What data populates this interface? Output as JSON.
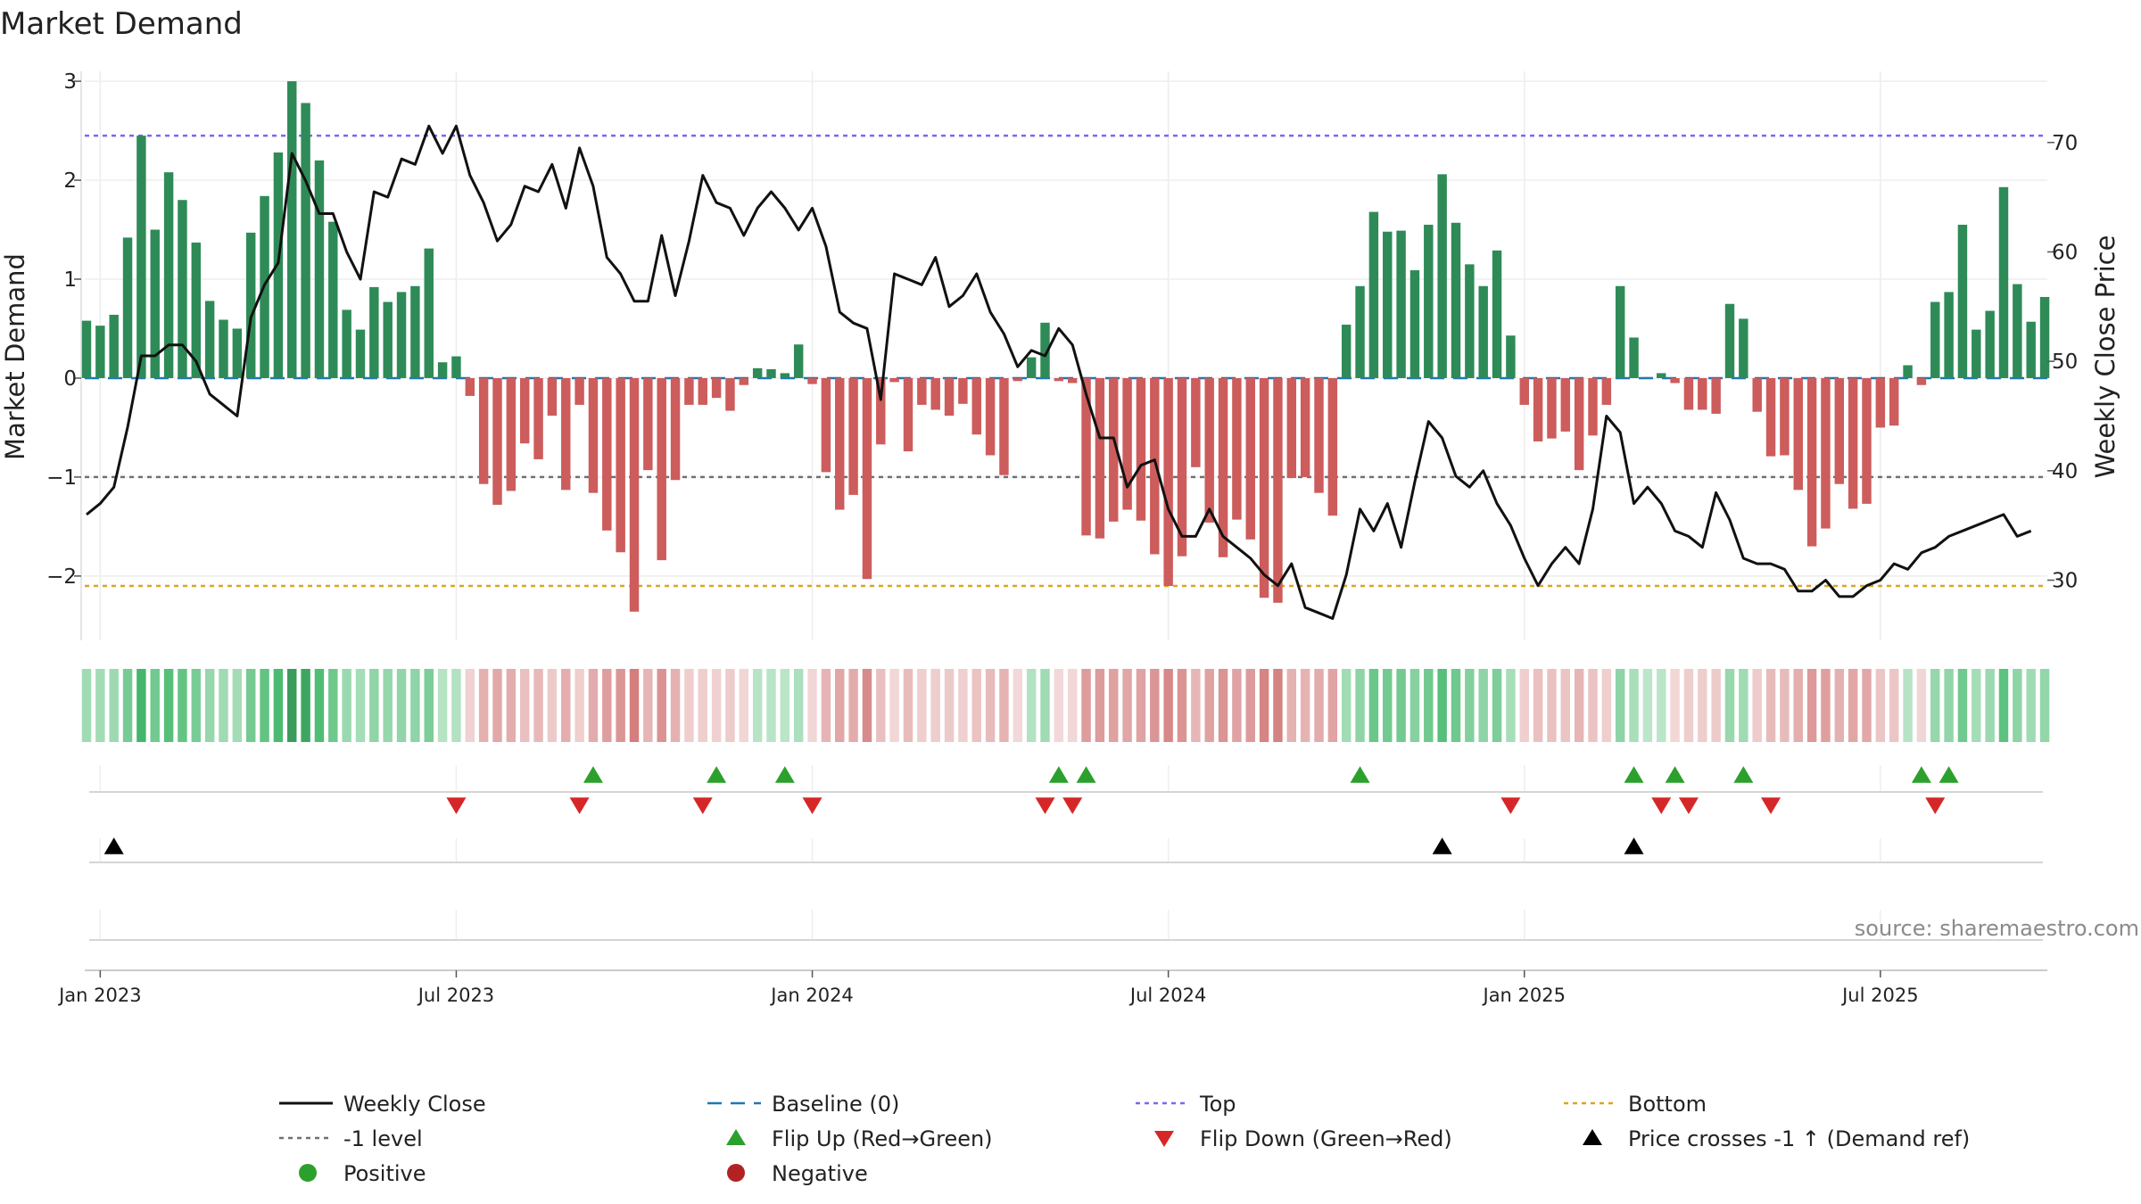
{
  "chart_data": {
    "type": "bar",
    "title": "Market Demand",
    "ylabel": "Market Demand",
    "y2label": "Weekly Close Price",
    "ylim": [
      -2.65,
      3.1
    ],
    "y_ticks": [
      3,
      2,
      1,
      0,
      -1,
      -2
    ],
    "y_tick_labels": [
      "3",
      "2",
      "1",
      "0",
      "−1",
      "−2"
    ],
    "y2lim": [
      24.5,
      76.5
    ],
    "y2_ticks": [
      70,
      60,
      50,
      40,
      30
    ],
    "y2_tick_labels": [
      "70",
      "60",
      "50",
      "40",
      "30"
    ],
    "x_tick_labels": [
      "Jan 2023",
      "Jul 2023",
      "Jan 2024",
      "Jul 2024",
      "Jan 2025",
      "Jul 2025"
    ],
    "x_tick_weeks": [
      1,
      27,
      53,
      79,
      105,
      131
    ],
    "reference_lines": {
      "top": 2.45,
      "bottom": -2.1,
      "minus_one": -1,
      "baseline": 0
    },
    "demand": [
      0.58,
      0.53,
      0.64,
      1.42,
      2.45,
      1.5,
      2.08,
      1.8,
      1.37,
      0.78,
      0.59,
      0.5,
      1.47,
      1.84,
      2.28,
      3.0,
      2.78,
      2.2,
      1.58,
      0.69,
      0.49,
      0.92,
      0.77,
      0.87,
      0.93,
      1.31,
      0.16,
      0.22,
      -0.18,
      -1.07,
      -1.28,
      -1.14,
      -0.66,
      -0.82,
      -0.38,
      -1.13,
      -0.27,
      -1.16,
      -1.54,
      -1.76,
      -2.36,
      -0.93,
      -1.84,
      -1.03,
      -0.27,
      -0.27,
      -0.2,
      -0.33,
      -0.07,
      0.1,
      0.09,
      0.05,
      0.34,
      -0.06,
      -0.95,
      -1.33,
      -1.18,
      -2.03,
      -0.67,
      -0.04,
      -0.74,
      -0.27,
      -0.32,
      -0.38,
      -0.26,
      -0.57,
      -0.78,
      -0.98,
      -0.03,
      0.21,
      0.56,
      -0.03,
      -0.05,
      -1.59,
      -1.62,
      -1.45,
      -1.33,
      -1.44,
      -1.78,
      -2.1,
      -1.8,
      -0.9,
      -1.46,
      -1.81,
      -1.43,
      -1.63,
      -2.22,
      -2.27,
      -1.01,
      -1.0,
      -1.16,
      -1.39,
      0.54,
      0.93,
      1.68,
      1.48,
      1.49,
      1.09,
      1.55,
      2.06,
      1.57,
      1.15,
      0.93,
      1.29,
      0.43,
      -0.27,
      -0.64,
      -0.61,
      -0.54,
      -0.93,
      -0.58,
      -0.27,
      0.93,
      0.41,
      0.01,
      0.05,
      -0.05,
      -0.32,
      -0.32,
      -0.36,
      0.75,
      0.6,
      -0.34,
      -0.79,
      -0.78,
      -1.13,
      -1.7,
      -1.52,
      -1.07,
      -1.32,
      -1.27,
      -0.5,
      -0.48,
      0.13,
      -0.07,
      0.77,
      0.87,
      1.55,
      0.49,
      0.68,
      1.93,
      0.95,
      0.57,
      0.82
    ],
    "weekly_close": [
      36.0,
      37.0,
      38.5,
      44.0,
      50.5,
      50.5,
      51.5,
      51.5,
      50.0,
      47.0,
      46.0,
      45.0,
      54.0,
      57.0,
      59.0,
      69.0,
      66.5,
      63.5,
      63.5,
      60.0,
      57.5,
      65.5,
      65.0,
      68.5,
      68.0,
      71.5,
      69.0,
      71.5,
      67.0,
      64.5,
      61.0,
      62.5,
      66.0,
      65.5,
      68.0,
      64.0,
      69.5,
      66.0,
      59.5,
      58.0,
      55.5,
      55.5,
      61.5,
      56.0,
      61.0,
      67.0,
      64.5,
      64.0,
      61.5,
      64.0,
      65.5,
      64.0,
      62.0,
      64.0,
      60.5,
      54.5,
      53.5,
      53.0,
      46.5,
      58.0,
      57.5,
      57.0,
      59.5,
      55.0,
      56.0,
      58.0,
      54.5,
      52.5,
      49.5,
      51.0,
      50.5,
      53.0,
      51.5,
      47.0,
      43.0,
      43.0,
      38.5,
      40.5,
      41.0,
      36.5,
      34.0,
      34.0,
      36.5,
      34.0,
      33.0,
      32.0,
      30.5,
      29.5,
      31.5,
      27.5,
      27.0,
      26.5,
      30.5,
      36.5,
      34.5,
      37.0,
      33.0,
      39.0,
      44.5,
      43.0,
      39.5,
      38.5,
      40.0,
      37.0,
      35.0,
      32.0,
      29.5,
      31.5,
      33.0,
      31.5,
      36.5,
      45.0,
      43.5,
      37.0,
      38.5,
      37.0,
      34.5,
      34.0,
      33.0,
      38.0,
      35.5,
      32.0,
      31.5,
      31.5,
      31.0,
      29.0,
      29.0,
      30.0,
      28.5,
      28.5,
      29.5,
      30.0,
      31.5,
      31.0,
      32.5,
      33.0,
      34.0,
      34.5,
      35.0,
      35.5,
      36.0,
      34.0,
      34.5
    ],
    "flip_up_weeks": [
      37,
      46,
      51,
      71,
      73,
      93,
      113,
      116,
      121,
      134,
      136
    ],
    "flip_down_weeks": [
      27,
      36,
      45,
      53,
      70,
      72,
      104,
      115,
      117,
      123,
      135
    ],
    "price_cross_weeks": [
      2,
      99,
      113
    ],
    "legend": [
      {
        "label": "Weekly Close",
        "kind": "line"
      },
      {
        "label": "Baseline (0)",
        "kind": "baseline"
      },
      {
        "label": "Top",
        "kind": "top"
      },
      {
        "label": "Bottom",
        "kind": "bottom"
      },
      {
        "label": "-1 level",
        "kind": "minus_one"
      },
      {
        "label": "Flip Up (Red→Green)",
        "kind": "flip_up"
      },
      {
        "label": "Flip Down (Green→Red)",
        "kind": "flip_down"
      },
      {
        "label": "Price crosses -1 ↑ (Demand ref)",
        "kind": "cross"
      },
      {
        "label": "Positive",
        "kind": "positive"
      },
      {
        "label": "Negative",
        "kind": "negative"
      }
    ],
    "source": "source: sharemaestro.com",
    "colors": {
      "positive": "#2e8b57",
      "negative": "#cd5c5c",
      "line": "#111111",
      "baseline": "#1f77b4",
      "top": "#7b68ee",
      "bottom": "#daa520",
      "minus_one": "#707070",
      "flip_up": "#2ca02c",
      "flip_down": "#d62728",
      "cross": "#000000",
      "legend_positive": "#2ca02c",
      "legend_negative": "#b22222"
    }
  }
}
